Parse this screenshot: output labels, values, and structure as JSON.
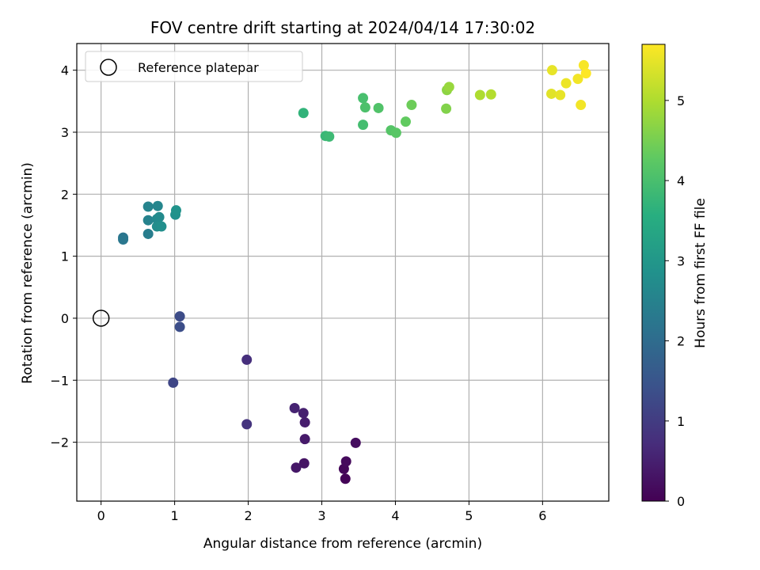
{
  "chart_data": {
    "type": "scatter",
    "title": "FOV centre drift starting at 2024/04/14 17:30:02",
    "xlabel": "Angular distance from reference (arcmin)",
    "ylabel": "Rotation from reference (arcmin)",
    "xlim": [
      -0.33,
      6.9
    ],
    "ylim": [
      -2.95,
      4.43
    ],
    "xticks": [
      "0",
      "1",
      "2",
      "3",
      "4",
      "5",
      "6"
    ],
    "yticks": [
      "−2",
      "−1",
      "0",
      "1",
      "2",
      "3",
      "4"
    ],
    "grid": true,
    "legend": {
      "location": "upper left",
      "entries": [
        {
          "label": "Reference platepar",
          "marker": "open-circle",
          "color": "#000000"
        }
      ]
    },
    "reference_point": {
      "x": 0,
      "y": 0
    },
    "colorbar": {
      "label": "Hours from first FF file",
      "range": [
        0,
        5.7
      ],
      "ticks": [
        "0",
        "1",
        "2",
        "3",
        "4",
        "5"
      ],
      "colormap": "viridis"
    },
    "series": [
      {
        "points": [
          {
            "x": 3.32,
            "y": -2.59,
            "c": 0.05
          },
          {
            "x": 3.3,
            "y": -2.43,
            "c": 0.1
          },
          {
            "x": 3.33,
            "y": -2.31,
            "c": 0.15
          },
          {
            "x": 3.46,
            "y": -2.01,
            "c": 0.2
          },
          {
            "x": 2.76,
            "y": -2.34,
            "c": 0.3
          },
          {
            "x": 2.65,
            "y": -2.41,
            "c": 0.35
          },
          {
            "x": 2.77,
            "y": -1.95,
            "c": 0.4
          },
          {
            "x": 2.77,
            "y": -1.68,
            "c": 0.45
          },
          {
            "x": 2.75,
            "y": -1.53,
            "c": 0.5
          },
          {
            "x": 2.63,
            "y": -1.45,
            "c": 0.55
          },
          {
            "x": 1.98,
            "y": -0.67,
            "c": 0.75
          },
          {
            "x": 1.98,
            "y": -1.71,
            "c": 0.85
          },
          {
            "x": 0.98,
            "y": -1.04,
            "c": 1.2
          },
          {
            "x": 1.07,
            "y": 0.03,
            "c": 1.3
          },
          {
            "x": 1.07,
            "y": -0.14,
            "c": 1.35
          },
          {
            "x": 0.3,
            "y": 1.3,
            "c": 2.2
          },
          {
            "x": 0.3,
            "y": 1.27,
            "c": 2.25
          },
          {
            "x": 0.64,
            "y": 1.36,
            "c": 2.4
          },
          {
            "x": 0.64,
            "y": 1.58,
            "c": 2.5
          },
          {
            "x": 0.64,
            "y": 1.8,
            "c": 2.55
          },
          {
            "x": 0.77,
            "y": 1.81,
            "c": 2.6
          },
          {
            "x": 0.76,
            "y": 1.6,
            "c": 2.65
          },
          {
            "x": 0.79,
            "y": 1.63,
            "c": 2.7
          },
          {
            "x": 0.76,
            "y": 1.48,
            "c": 2.75
          },
          {
            "x": 0.82,
            "y": 1.48,
            "c": 2.8
          },
          {
            "x": 1.01,
            "y": 1.67,
            "c": 2.85
          },
          {
            "x": 1.02,
            "y": 1.74,
            "c": 2.9
          },
          {
            "x": 2.75,
            "y": 3.31,
            "c": 3.7
          },
          {
            "x": 3.05,
            "y": 2.94,
            "c": 3.8
          },
          {
            "x": 3.1,
            "y": 2.93,
            "c": 3.85
          },
          {
            "x": 3.56,
            "y": 3.12,
            "c": 3.95
          },
          {
            "x": 3.56,
            "y": 3.55,
            "c": 4.0
          },
          {
            "x": 3.59,
            "y": 3.4,
            "c": 4.05
          },
          {
            "x": 3.77,
            "y": 3.39,
            "c": 4.1
          },
          {
            "x": 3.94,
            "y": 3.03,
            "c": 4.15
          },
          {
            "x": 4.01,
            "y": 2.99,
            "c": 4.2
          },
          {
            "x": 4.14,
            "y": 3.17,
            "c": 4.3
          },
          {
            "x": 4.22,
            "y": 3.44,
            "c": 4.4
          },
          {
            "x": 4.69,
            "y": 3.38,
            "c": 4.6
          },
          {
            "x": 4.7,
            "y": 3.68,
            "c": 4.7
          },
          {
            "x": 4.73,
            "y": 3.73,
            "c": 4.8
          },
          {
            "x": 5.15,
            "y": 3.6,
            "c": 5.0
          },
          {
            "x": 5.3,
            "y": 3.61,
            "c": 5.05
          },
          {
            "x": 6.12,
            "y": 3.62,
            "c": 5.45
          },
          {
            "x": 6.13,
            "y": 4.0,
            "c": 5.5
          },
          {
            "x": 6.24,
            "y": 3.6,
            "c": 5.5
          },
          {
            "x": 6.32,
            "y": 3.79,
            "c": 5.55
          },
          {
            "x": 6.48,
            "y": 3.86,
            "c": 5.6
          },
          {
            "x": 6.52,
            "y": 3.44,
            "c": 5.6
          },
          {
            "x": 6.56,
            "y": 4.08,
            "c": 5.65
          },
          {
            "x": 6.59,
            "y": 3.95,
            "c": 5.7
          }
        ]
      }
    ]
  }
}
